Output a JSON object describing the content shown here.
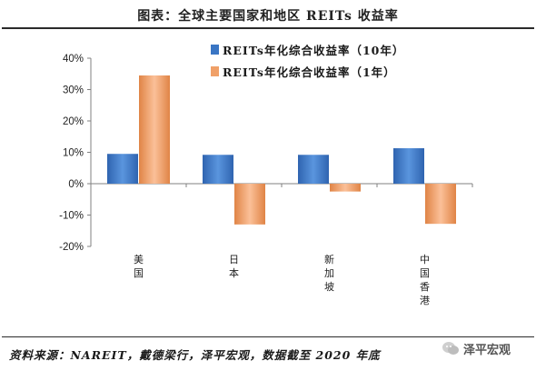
{
  "header": {
    "title": "图表：全球主要国家和地区 REITs 收益率"
  },
  "legend": [
    {
      "label": "REITs年化综合收益率（10年）",
      "color": "#3a76c4"
    },
    {
      "label": "REITs年化综合收益率（1年）",
      "color": "#f0a068"
    }
  ],
  "footer": {
    "source": "资料来源：NAREIT，戴德梁行，泽平宏观，数据截至 2020 年底",
    "brand": "泽平宏观",
    "brand_icon": "wechat-icon"
  },
  "colors": {
    "series_10y": "#3a76c4",
    "series_1y": "#f0a068",
    "axis": "#808080"
  },
  "chart_data": {
    "type": "bar",
    "categories": [
      "美国",
      "日本",
      "新加坡",
      "中国香港"
    ],
    "series": [
      {
        "name": "REITs年化综合收益率（10年）",
        "values": [
          9.5,
          9.2,
          9.2,
          11.3
        ]
      },
      {
        "name": "REITs年化综合收益率（1年）",
        "values": [
          34.5,
          -13.0,
          -2.5,
          -12.8
        ]
      }
    ],
    "ylim": [
      -20,
      40
    ],
    "y_ticks": [
      "-20%",
      "-10%",
      "0%",
      "10%",
      "20%",
      "30%",
      "40%"
    ],
    "grid": false,
    "legend_position": "top-right"
  }
}
